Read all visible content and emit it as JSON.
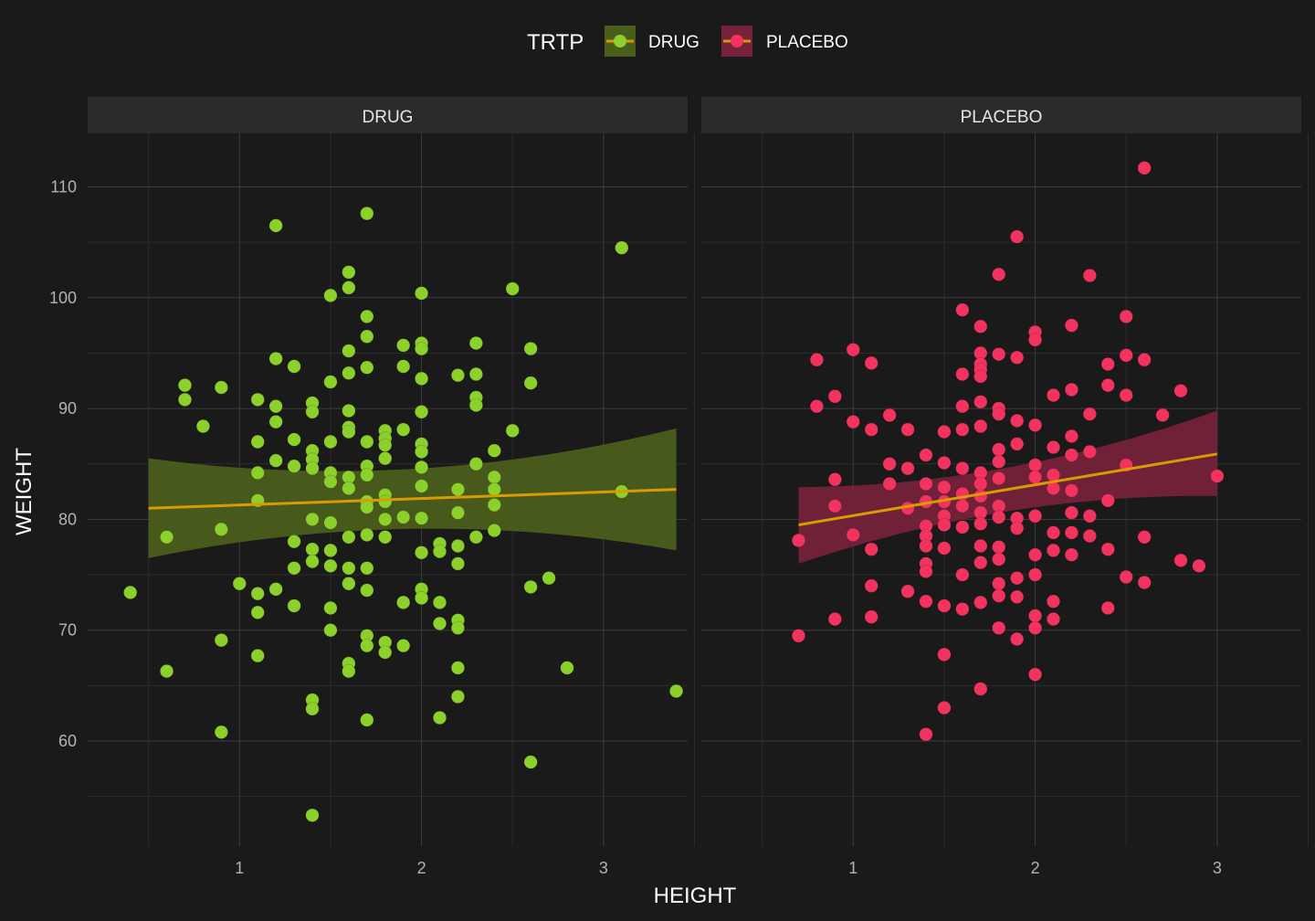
{
  "chart_data": {
    "type": "scatter",
    "xlabel": "HEIGHT",
    "ylabel": "WEIGHT",
    "legend": {
      "title": "TRTP",
      "position": "top",
      "entries": [
        "DRUG",
        "PLACEBO"
      ]
    },
    "xlim": [
      0.4,
      3.55
    ],
    "ylim": [
      50.5,
      114.5
    ],
    "x_ticks": [
      1,
      2,
      3
    ],
    "y_ticks": [
      60,
      70,
      80,
      90,
      100,
      110
    ],
    "grid": true,
    "colors": {
      "background": "#1a1a1a",
      "grid_major": "#3d3d3d",
      "grid_minor": "#2c2c2c",
      "strip": "#2b2b2b",
      "fit_line": "#d99b00",
      "DRUG": "#8bd02b",
      "DRUG_band": "#4a5e1c",
      "PLACEBO": "#f2335f",
      "PLACEBO_band": "#75223a"
    },
    "panels": [
      {
        "name": "DRUG",
        "fit": {
          "x": [
            0.5,
            3.4
          ],
          "y": [
            81.0,
            82.7
          ],
          "band_lower": [
            76.5,
            77.2
          ],
          "band_upper": [
            85.5,
            88.2
          ]
        },
        "points": [
          [
            0.4,
            73.4
          ],
          [
            0.6,
            78.4
          ],
          [
            0.6,
            66.3
          ],
          [
            0.7,
            92.1
          ],
          [
            0.7,
            90.8
          ],
          [
            0.8,
            88.4
          ],
          [
            0.9,
            91.9
          ],
          [
            0.9,
            79.1
          ],
          [
            0.9,
            69.1
          ],
          [
            0.9,
            60.8
          ],
          [
            1.0,
            74.2
          ],
          [
            1.1,
            90.8
          ],
          [
            1.1,
            87.0
          ],
          [
            1.1,
            84.2
          ],
          [
            1.1,
            81.7
          ],
          [
            1.1,
            73.3
          ],
          [
            1.1,
            71.6
          ],
          [
            1.1,
            67.7
          ],
          [
            1.2,
            106.5
          ],
          [
            1.2,
            94.5
          ],
          [
            1.2,
            90.2
          ],
          [
            1.2,
            88.8
          ],
          [
            1.2,
            85.3
          ],
          [
            1.2,
            73.7
          ],
          [
            1.3,
            93.8
          ],
          [
            1.3,
            87.2
          ],
          [
            1.3,
            84.8
          ],
          [
            1.3,
            78.0
          ],
          [
            1.3,
            75.6
          ],
          [
            1.3,
            72.2
          ],
          [
            1.4,
            90.5
          ],
          [
            1.4,
            89.7
          ],
          [
            1.4,
            86.2
          ],
          [
            1.4,
            85.4
          ],
          [
            1.4,
            84.6
          ],
          [
            1.4,
            80.0
          ],
          [
            1.4,
            77.3
          ],
          [
            1.4,
            76.2
          ],
          [
            1.4,
            63.7
          ],
          [
            1.4,
            62.9
          ],
          [
            1.4,
            53.3
          ],
          [
            1.5,
            100.2
          ],
          [
            1.5,
            92.4
          ],
          [
            1.5,
            87.0
          ],
          [
            1.5,
            84.2
          ],
          [
            1.5,
            83.4
          ],
          [
            1.5,
            79.7
          ],
          [
            1.5,
            77.2
          ],
          [
            1.5,
            75.8
          ],
          [
            1.5,
            72.0
          ],
          [
            1.5,
            70.0
          ],
          [
            1.6,
            102.3
          ],
          [
            1.6,
            100.9
          ],
          [
            1.6,
            95.2
          ],
          [
            1.6,
            93.2
          ],
          [
            1.6,
            89.8
          ],
          [
            1.6,
            88.3
          ],
          [
            1.6,
            87.9
          ],
          [
            1.6,
            83.8
          ],
          [
            1.6,
            82.8
          ],
          [
            1.6,
            78.4
          ],
          [
            1.6,
            75.6
          ],
          [
            1.6,
            74.2
          ],
          [
            1.6,
            67.0
          ],
          [
            1.6,
            66.3
          ],
          [
            1.7,
            107.6
          ],
          [
            1.7,
            98.3
          ],
          [
            1.7,
            96.5
          ],
          [
            1.7,
            93.7
          ],
          [
            1.7,
            87.0
          ],
          [
            1.7,
            84.8
          ],
          [
            1.7,
            84.0
          ],
          [
            1.7,
            81.6
          ],
          [
            1.7,
            81.1
          ],
          [
            1.7,
            78.6
          ],
          [
            1.7,
            75.6
          ],
          [
            1.7,
            73.6
          ],
          [
            1.7,
            69.5
          ],
          [
            1.7,
            68.6
          ],
          [
            1.7,
            61.9
          ],
          [
            1.8,
            88.0
          ],
          [
            1.8,
            87.3
          ],
          [
            1.8,
            86.7
          ],
          [
            1.8,
            85.5
          ],
          [
            1.8,
            82.2
          ],
          [
            1.8,
            81.6
          ],
          [
            1.8,
            80.0
          ],
          [
            1.8,
            78.4
          ],
          [
            1.8,
            68.9
          ],
          [
            1.8,
            68.0
          ],
          [
            1.9,
            95.7
          ],
          [
            1.9,
            93.8
          ],
          [
            1.9,
            88.1
          ],
          [
            1.9,
            80.2
          ],
          [
            1.9,
            72.5
          ],
          [
            1.9,
            68.6
          ],
          [
            2.0,
            100.4
          ],
          [
            2.0,
            95.9
          ],
          [
            2.0,
            95.4
          ],
          [
            2.0,
            92.7
          ],
          [
            2.0,
            89.7
          ],
          [
            2.0,
            86.8
          ],
          [
            2.0,
            86.1
          ],
          [
            2.0,
            84.7
          ],
          [
            2.0,
            83.0
          ],
          [
            2.0,
            80.1
          ],
          [
            2.0,
            77.0
          ],
          [
            2.0,
            73.7
          ],
          [
            2.0,
            72.9
          ],
          [
            2.1,
            77.8
          ],
          [
            2.1,
            77.1
          ],
          [
            2.1,
            72.5
          ],
          [
            2.1,
            70.6
          ],
          [
            2.1,
            62.1
          ],
          [
            2.2,
            93.0
          ],
          [
            2.2,
            82.7
          ],
          [
            2.2,
            80.6
          ],
          [
            2.2,
            77.6
          ],
          [
            2.2,
            76.0
          ],
          [
            2.2,
            70.9
          ],
          [
            2.2,
            70.2
          ],
          [
            2.2,
            66.6
          ],
          [
            2.2,
            64.0
          ],
          [
            2.3,
            95.9
          ],
          [
            2.3,
            93.1
          ],
          [
            2.3,
            91.0
          ],
          [
            2.3,
            90.3
          ],
          [
            2.3,
            85.0
          ],
          [
            2.3,
            78.4
          ],
          [
            2.4,
            86.2
          ],
          [
            2.4,
            83.8
          ],
          [
            2.4,
            82.7
          ],
          [
            2.4,
            81.3
          ],
          [
            2.4,
            79.0
          ],
          [
            2.5,
            100.8
          ],
          [
            2.5,
            88.0
          ],
          [
            2.6,
            95.4
          ],
          [
            2.6,
            92.3
          ],
          [
            2.6,
            73.9
          ],
          [
            2.6,
            58.1
          ],
          [
            2.7,
            74.7
          ],
          [
            2.8,
            66.6
          ],
          [
            3.1,
            104.5
          ],
          [
            3.1,
            82.5
          ],
          [
            3.4,
            64.5
          ]
        ]
      },
      {
        "name": "PLACEBO",
        "fit": {
          "x": [
            0.7,
            3.0
          ],
          "y": [
            79.5,
            85.9
          ],
          "band_lower": [
            76.0,
            82.1
          ],
          "band_upper": [
            82.9,
            89.8
          ]
        },
        "points": [
          [
            0.7,
            78.1
          ],
          [
            0.7,
            69.5
          ],
          [
            0.8,
            94.4
          ],
          [
            0.8,
            90.2
          ],
          [
            0.9,
            91.1
          ],
          [
            0.9,
            83.6
          ],
          [
            0.9,
            81.2
          ],
          [
            0.9,
            71.0
          ],
          [
            1.0,
            95.3
          ],
          [
            1.0,
            88.8
          ],
          [
            1.0,
            78.6
          ],
          [
            1.1,
            94.1
          ],
          [
            1.1,
            88.1
          ],
          [
            1.1,
            77.3
          ],
          [
            1.1,
            74.0
          ],
          [
            1.1,
            71.2
          ],
          [
            1.2,
            89.4
          ],
          [
            1.2,
            85.0
          ],
          [
            1.2,
            83.2
          ],
          [
            1.3,
            88.1
          ],
          [
            1.3,
            84.6
          ],
          [
            1.3,
            81.0
          ],
          [
            1.3,
            73.5
          ],
          [
            1.4,
            85.8
          ],
          [
            1.4,
            83.2
          ],
          [
            1.4,
            81.6
          ],
          [
            1.4,
            79.4
          ],
          [
            1.4,
            78.5
          ],
          [
            1.4,
            77.6
          ],
          [
            1.4,
            76.0
          ],
          [
            1.4,
            75.3
          ],
          [
            1.4,
            72.6
          ],
          [
            1.4,
            60.6
          ],
          [
            1.5,
            87.9
          ],
          [
            1.5,
            85.1
          ],
          [
            1.5,
            82.9
          ],
          [
            1.5,
            81.6
          ],
          [
            1.5,
            80.3
          ],
          [
            1.5,
            79.5
          ],
          [
            1.5,
            77.4
          ],
          [
            1.5,
            72.2
          ],
          [
            1.5,
            67.8
          ],
          [
            1.5,
            63.0
          ],
          [
            1.6,
            98.9
          ],
          [
            1.6,
            93.1
          ],
          [
            1.6,
            90.2
          ],
          [
            1.6,
            88.1
          ],
          [
            1.6,
            84.6
          ],
          [
            1.6,
            82.3
          ],
          [
            1.6,
            81.2
          ],
          [
            1.6,
            79.3
          ],
          [
            1.6,
            75.0
          ],
          [
            1.6,
            71.9
          ],
          [
            1.7,
            97.4
          ],
          [
            1.7,
            95.0
          ],
          [
            1.7,
            94.0
          ],
          [
            1.7,
            93.5
          ],
          [
            1.7,
            92.9
          ],
          [
            1.7,
            90.6
          ],
          [
            1.7,
            88.4
          ],
          [
            1.7,
            84.2
          ],
          [
            1.7,
            83.2
          ],
          [
            1.7,
            82.1
          ],
          [
            1.7,
            80.6
          ],
          [
            1.7,
            79.6
          ],
          [
            1.7,
            77.6
          ],
          [
            1.7,
            76.1
          ],
          [
            1.7,
            72.5
          ],
          [
            1.7,
            64.7
          ],
          [
            1.8,
            102.1
          ],
          [
            1.8,
            94.9
          ],
          [
            1.8,
            90.0
          ],
          [
            1.8,
            89.5
          ],
          [
            1.8,
            86.3
          ],
          [
            1.8,
            85.2
          ],
          [
            1.8,
            83.7
          ],
          [
            1.8,
            81.2
          ],
          [
            1.8,
            80.2
          ],
          [
            1.8,
            77.5
          ],
          [
            1.8,
            76.4
          ],
          [
            1.8,
            74.2
          ],
          [
            1.8,
            73.1
          ],
          [
            1.8,
            70.2
          ],
          [
            1.9,
            105.5
          ],
          [
            1.9,
            94.6
          ],
          [
            1.9,
            88.9
          ],
          [
            1.9,
            86.8
          ],
          [
            1.9,
            80.1
          ],
          [
            1.9,
            79.2
          ],
          [
            1.9,
            74.7
          ],
          [
            1.9,
            73.0
          ],
          [
            1.9,
            69.2
          ],
          [
            2.0,
            96.9
          ],
          [
            2.0,
            96.2
          ],
          [
            2.0,
            88.5
          ],
          [
            2.0,
            84.9
          ],
          [
            2.0,
            83.8
          ],
          [
            2.0,
            80.3
          ],
          [
            2.0,
            76.8
          ],
          [
            2.0,
            75.0
          ],
          [
            2.0,
            71.3
          ],
          [
            2.0,
            70.2
          ],
          [
            2.0,
            66.0
          ],
          [
            2.1,
            91.2
          ],
          [
            2.1,
            86.5
          ],
          [
            2.1,
            84.0
          ],
          [
            2.1,
            82.8
          ],
          [
            2.1,
            78.8
          ],
          [
            2.1,
            77.2
          ],
          [
            2.1,
            72.6
          ],
          [
            2.1,
            71.0
          ],
          [
            2.2,
            97.5
          ],
          [
            2.2,
            91.7
          ],
          [
            2.2,
            87.5
          ],
          [
            2.2,
            85.8
          ],
          [
            2.2,
            82.6
          ],
          [
            2.2,
            80.6
          ],
          [
            2.2,
            78.8
          ],
          [
            2.2,
            76.8
          ],
          [
            2.3,
            102.0
          ],
          [
            2.3,
            89.5
          ],
          [
            2.3,
            86.1
          ],
          [
            2.3,
            80.3
          ],
          [
            2.3,
            78.5
          ],
          [
            2.4,
            94.0
          ],
          [
            2.4,
            92.1
          ],
          [
            2.4,
            81.7
          ],
          [
            2.4,
            77.3
          ],
          [
            2.4,
            72.0
          ],
          [
            2.5,
            98.3
          ],
          [
            2.5,
            94.8
          ],
          [
            2.5,
            91.2
          ],
          [
            2.5,
            84.9
          ],
          [
            2.5,
            74.8
          ],
          [
            2.6,
            94.4
          ],
          [
            2.6,
            78.4
          ],
          [
            2.6,
            74.3
          ],
          [
            2.7,
            89.4
          ],
          [
            2.8,
            91.6
          ],
          [
            2.8,
            76.3
          ],
          [
            2.9,
            75.8
          ],
          [
            3.0,
            83.9
          ],
          [
            2.6,
            111.7
          ]
        ]
      }
    ]
  }
}
